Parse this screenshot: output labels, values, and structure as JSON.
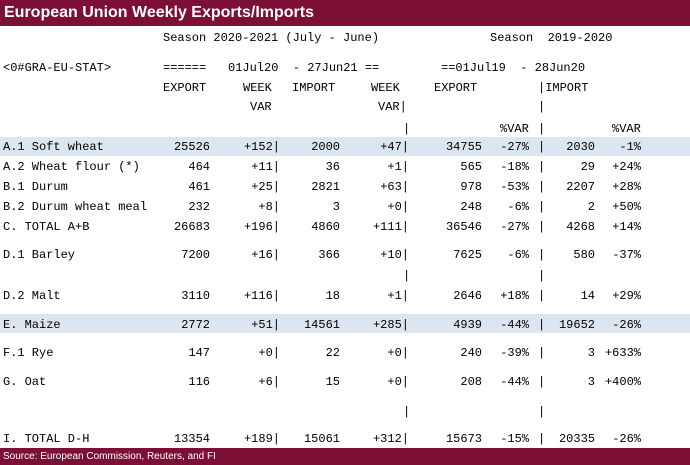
{
  "title": "European Union Weekly Exports/Imports",
  "header": {
    "season_current": "Season 2020-2021 (July - June)",
    "season_previous": "Season  2019-2020",
    "ric_code": "<0#GRA-EU-STAT>",
    "eq_marks": "======",
    "period_current": "01Jul20  - 27Jun21 ==",
    "period_previous": "==01Jul19  - 28Jun20",
    "col_export": "EXPORT",
    "col_week": "WEEK",
    "col_import": "IMPORT",
    "col_week2": "WEEK",
    "col_export_prev": "EXPORT",
    "col_import_prev": "|IMPORT",
    "col_var": "VAR",
    "col_var2": "VAR|",
    "pipe": "|",
    "pct_var": "%VAR",
    "pct_var2": "%VAR"
  },
  "rows": [
    {
      "label": "A.1 Soft wheat",
      "export": "25526",
      "week_var": "+152|",
      "import": "2000",
      "week_var2": "+47|",
      "export_prev": "34755",
      "pct_var": "-27%",
      "import_prev": "2030",
      "pct_var2": "-1%"
    },
    {
      "label": "A.2 Wheat flour (*)",
      "export": "464",
      "week_var": "+11|",
      "import": "36",
      "week_var2": "+1|",
      "export_prev": "565",
      "pct_var": "-18%",
      "import_prev": "29",
      "pct_var2": "+24%"
    },
    {
      "label": "B.1 Durum",
      "export": "461",
      "week_var": "+25|",
      "import": "2821",
      "week_var2": "+63|",
      "export_prev": "978",
      "pct_var": "-53%",
      "import_prev": "2207",
      "pct_var2": "+28%"
    },
    {
      "label": "B.2 Durum wheat meal",
      "export": "232",
      "week_var": "+8|",
      "import": "3",
      "week_var2": "+0|",
      "export_prev": "248",
      "pct_var": "-6%",
      "import_prev": "2",
      "pct_var2": "+50%"
    },
    {
      "label": "C. TOTAL A+B",
      "export": "26683",
      "week_var": "+196|",
      "import": "4860",
      "week_var2": "+111|",
      "export_prev": "36546",
      "pct_var": "-27%",
      "import_prev": "4268",
      "pct_var2": "+14%"
    },
    {
      "label": "D.1 Barley",
      "export": "7200",
      "week_var": "+16|",
      "import": "366",
      "week_var2": "+10|",
      "export_prev": "7625",
      "pct_var": "-6%",
      "import_prev": "580",
      "pct_var2": "-37%"
    },
    {
      "label": "D.2 Malt",
      "export": "3110",
      "week_var": "+116|",
      "import": "18",
      "week_var2": "+1|",
      "export_prev": "2646",
      "pct_var": "+18%",
      "import_prev": "14",
      "pct_var2": "+29%"
    },
    {
      "label": "E. Maize",
      "export": "2772",
      "week_var": "+51|",
      "import": "14561",
      "week_var2": "+285|",
      "export_prev": "4939",
      "pct_var": "-44%",
      "import_prev": "19652",
      "pct_var2": "-26%"
    },
    {
      "label": "F.1 Rye",
      "export": "147",
      "week_var": "+0|",
      "import": "22",
      "week_var2": "+0|",
      "export_prev": "240",
      "pct_var": "-39%",
      "import_prev": "3",
      "pct_var2": "+633%"
    },
    {
      "label": "G. Oat",
      "export": "116",
      "week_var": "+6|",
      "import": "15",
      "week_var2": "+0|",
      "export_prev": "208",
      "pct_var": "-44%",
      "import_prev": "3",
      "pct_var2": "+400%"
    },
    {
      "label": "I. TOTAL D-H",
      "export": "13354",
      "week_var": "+189|",
      "import": "15061",
      "week_var2": "+312|",
      "export_prev": "15673",
      "pct_var": "-15%",
      "import_prev": "20335",
      "pct_var2": "-26%"
    }
  ],
  "separator": "|",
  "source": "Source: European Commission, Reuters, and FI",
  "colors": {
    "title_bg": "#7b0f35",
    "highlight_row": "#dce6f1"
  }
}
